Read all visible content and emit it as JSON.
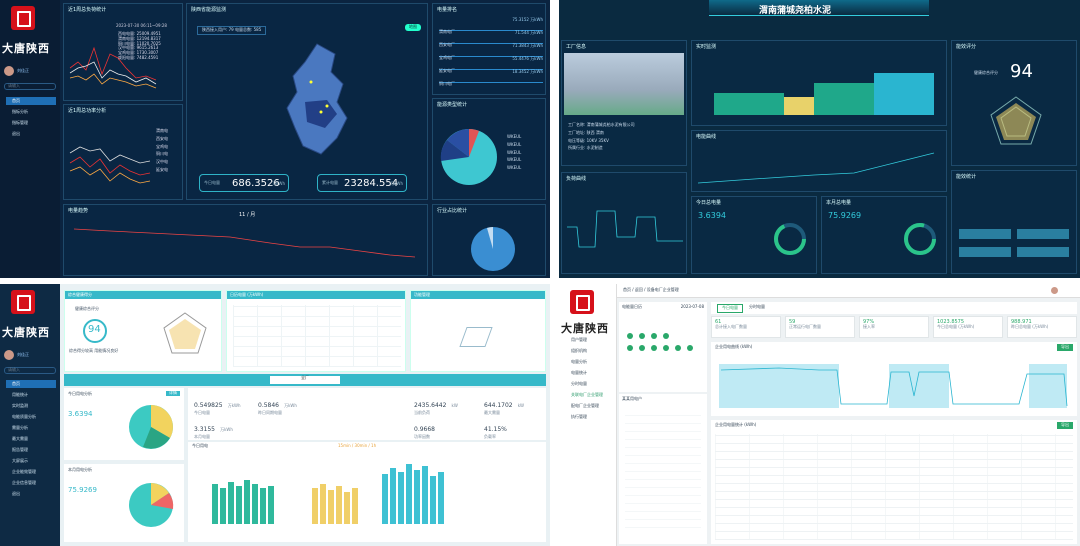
{
  "brand": "大唐陕西",
  "q1": {
    "user": "刘佳正",
    "search": "请输入",
    "menu": [
      "首页",
      "指标分析",
      "指标管理",
      "退出"
    ],
    "p_trend": "近1周总负荷统计",
    "p_trend_time": "2023-07-30 06:11~09:28",
    "p_trend_lines": [
      "西电电量: 25009.4951",
      "渭南电量: 12194.8317",
      "铜川电量: 11020.7025",
      "汉中电量: 9615.2613",
      "宝鸡电量: 1730.3007",
      "咸阳电量: 7482.4591"
    ],
    "p_dist": "近1周总功率分析",
    "p_dist_lines": [
      "渭南电",
      "西安电",
      "宝鸡电",
      "铜川电",
      "汉中电",
      "延安电"
    ],
    "p_map": "陕西省能源监测",
    "map_chip": "陕西接入用户: 79 电量总数: 585",
    "map_badge": "地图",
    "stat1_label": "今日电量",
    "stat1": "686.3526",
    "stat1_unit": "万kWh",
    "stat2_label": "累计电量",
    "stat2": "23284.554",
    "stat2_unit": "万kWh",
    "p_rank": "电量排名",
    "rank": [
      {
        "n": "渭南电厂",
        "v": "75.3152 万kWh"
      },
      {
        "n": "西安电厂",
        "v": "71.544 万kWh"
      },
      {
        "n": "宝鸡电厂",
        "v": "71.3843 万kWh"
      },
      {
        "n": "延安电厂",
        "v": "55.4476 万kWh"
      },
      {
        "n": "铜川电厂",
        "v": "18.3452 万kWh"
      }
    ],
    "p_pie": "能源类型统计",
    "pie_legend": [
      "WKEUL",
      "WKEUL",
      "WKEUL",
      "WKEUL",
      "WKEUL"
    ],
    "p_month": "电量趋势",
    "month_center": "11 / 月",
    "p_gauge": "行业占比统计"
  },
  "q2": {
    "title": "渭南蒲城尧柏水泥",
    "p_factory": "工厂信息",
    "factory": [
      {
        "k": "工厂名称:",
        "v": "渭南蒲城尧柏水泥有限公司"
      },
      {
        "k": "工厂地址:",
        "v": "陕西 渭南"
      },
      {
        "k": "电压等级:",
        "v": "10KV 35KV"
      },
      {
        "k": "所属行业:",
        "v": "水泥制造"
      }
    ],
    "p_monitor": "实时监测",
    "p_load": "负荷曲线",
    "p_power": "电能曲线",
    "p_score": "能效评分",
    "score": "94",
    "score_label": "健康综合评分",
    "p_today": "今日总电量",
    "today": "3.6394",
    "p_yest": "本月总电量",
    "yest": "75.9269",
    "p_stat": "能效统计"
  },
  "q3": {
    "user": "刘佳正",
    "search": "请输入",
    "menu": [
      "首页",
      "用能统计",
      "实时监测",
      "电能质量分析",
      "需量分析",
      "最大需量",
      "报告管理",
      "大屏展示",
      "企业能效管理",
      "企业信息管理",
      "退出"
    ],
    "p_health": "综合健康得分",
    "health_sub": "健康综合评分",
    "health": "94",
    "health_note": "综合得分较高 用能情况良好",
    "radar_labels": [
      "电压偏差",
      "谐波含量",
      "功率因数",
      "三相不平衡",
      "电流不平衡"
    ],
    "p_cal": "日历电量 (万kWh)",
    "p_env": "功能管理",
    "factory_tab": "全厂",
    "today_label": "今日用电分析",
    "today_v": "3.6394",
    "today_badge": "详情",
    "month_label": "本月用电分析",
    "month_v": "75.9269",
    "kpis": [
      {
        "v": "0.549825",
        "u": "万kWh",
        "l": "今日电量"
      },
      {
        "v": "0.5846",
        "u": "万kWh",
        "l": "昨日同期电量"
      },
      {
        "v": "3.3155",
        "u": "万kWh",
        "l": "本月电量"
      },
      {
        "v": "2435.6442",
        "u": "kW",
        "l": "当前负荷"
      },
      {
        "v": "644.1702",
        "u": "kW",
        "l": "最大需量"
      },
      {
        "v": "0.9668",
        "u": "",
        "l": "功率因数"
      },
      {
        "v": "41.15%",
        "u": "",
        "l": "负载率"
      }
    ],
    "chart_tabs": "15min / 30min / 1h",
    "chart_title": "今日用电"
  },
  "q4": {
    "breadcrumb": "首页 / 返回 / 设备电厂企业管理",
    "menu": [
      "用户管理",
      "组织机构",
      "电量分析",
      "电量统计",
      "分时电量",
      "关联电厂企业管理",
      "配电厂企业管理",
      "执行管理"
    ],
    "cal_title": "电能量日历",
    "cal_month": "2023-07-08",
    "tree_title": "某某用电户",
    "tabs": [
      "今日电量",
      "分时电量"
    ],
    "stats": [
      {
        "v": "61",
        "l": "总计接入电厂数量"
      },
      {
        "v": "59",
        "l": "正常运行电厂数量"
      },
      {
        "v": "97%",
        "l": "接入率"
      },
      {
        "v": "1023.8575",
        "l": "今日总电量 (万kWh)"
      },
      {
        "v": "988.971",
        "l": "昨日总电量 (万kWh)"
      }
    ],
    "chart_title": "企业用电曲线 (kWh)",
    "chart_btn": "导出",
    "table_title": "企业用电量统计 (kWh)",
    "table_btn": "导出"
  }
}
